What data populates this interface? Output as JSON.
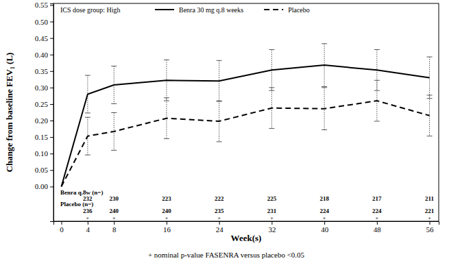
{
  "chart_data": {
    "type": "line",
    "legend_title": "ICS dose group: High",
    "legend": "upper left",
    "x_label": "Week(s)",
    "y_label": "Change from baseline FEV₁ (L)",
    "footnote": "+ nominal p-value FASENRA versus placebo <0.05",
    "x": [
      0,
      4,
      8,
      16,
      24,
      32,
      40,
      48,
      56
    ],
    "xlim": [
      -1.2,
      57.4
    ],
    "xticks": [
      0,
      4,
      8,
      16,
      24,
      32,
      40,
      48,
      56
    ],
    "ylim": [
      -0.105,
      0.555
    ],
    "yticks": [
      {
        "value": 0,
        "label": "0.00"
      },
      {
        "value": 0.05,
        "label": "0.05"
      },
      {
        "value": 0.1,
        "label": "0.10"
      },
      {
        "value": 0.15,
        "label": "0.15"
      },
      {
        "value": 0.2,
        "label": "0.20"
      },
      {
        "value": 0.25,
        "label": "0.25"
      },
      {
        "value": 0.3,
        "label": "0.30"
      },
      {
        "value": 0.35,
        "label": "0.35"
      },
      {
        "value": 0.4,
        "label": "0.40"
      },
      {
        "value": 0.45,
        "label": "0.45"
      },
      {
        "value": 0.5,
        "label": "0.50"
      },
      {
        "value": 0.55,
        "label": "0.55"
      }
    ],
    "grid": false,
    "series": [
      {
        "name": "Benra 30 mg q.8 weeks",
        "color": "#000000",
        "line_style": "solid",
        "values": [
          0,
          0.28,
          0.308,
          0.322,
          0.32,
          0.353,
          0.368,
          0.353,
          0.33
        ],
        "errors": [
          null,
          0.057,
          0.057,
          0.062,
          0.062,
          0.062,
          0.065,
          0.062,
          0.063
        ]
      },
      {
        "name": "Placebo",
        "color": "#000000",
        "line_style": "dashed",
        "values": [
          0,
          0.153,
          0.167,
          0.207,
          0.198,
          0.238,
          0.236,
          0.26,
          0.215
        ],
        "errors": [
          null,
          0.057,
          0.057,
          0.062,
          0.062,
          0.062,
          0.064,
          0.062,
          0.062
        ]
      }
    ],
    "n_table": {
      "x": [
        4,
        8,
        16,
        24,
        32,
        40,
        48,
        56
      ],
      "rows": [
        {
          "label": "Benra q.8w (n=)",
          "values": [
            232,
            230,
            223,
            222,
            225,
            218,
            217,
            211
          ]
        },
        {
          "label": "Placebo (n=)",
          "values": [
            236,
            240,
            240,
            235,
            231,
            224,
            224,
            221
          ]
        }
      ],
      "significance_marker": "+",
      "significant": [
        true,
        true,
        true,
        true,
        true,
        true,
        true,
        true
      ]
    }
  }
}
